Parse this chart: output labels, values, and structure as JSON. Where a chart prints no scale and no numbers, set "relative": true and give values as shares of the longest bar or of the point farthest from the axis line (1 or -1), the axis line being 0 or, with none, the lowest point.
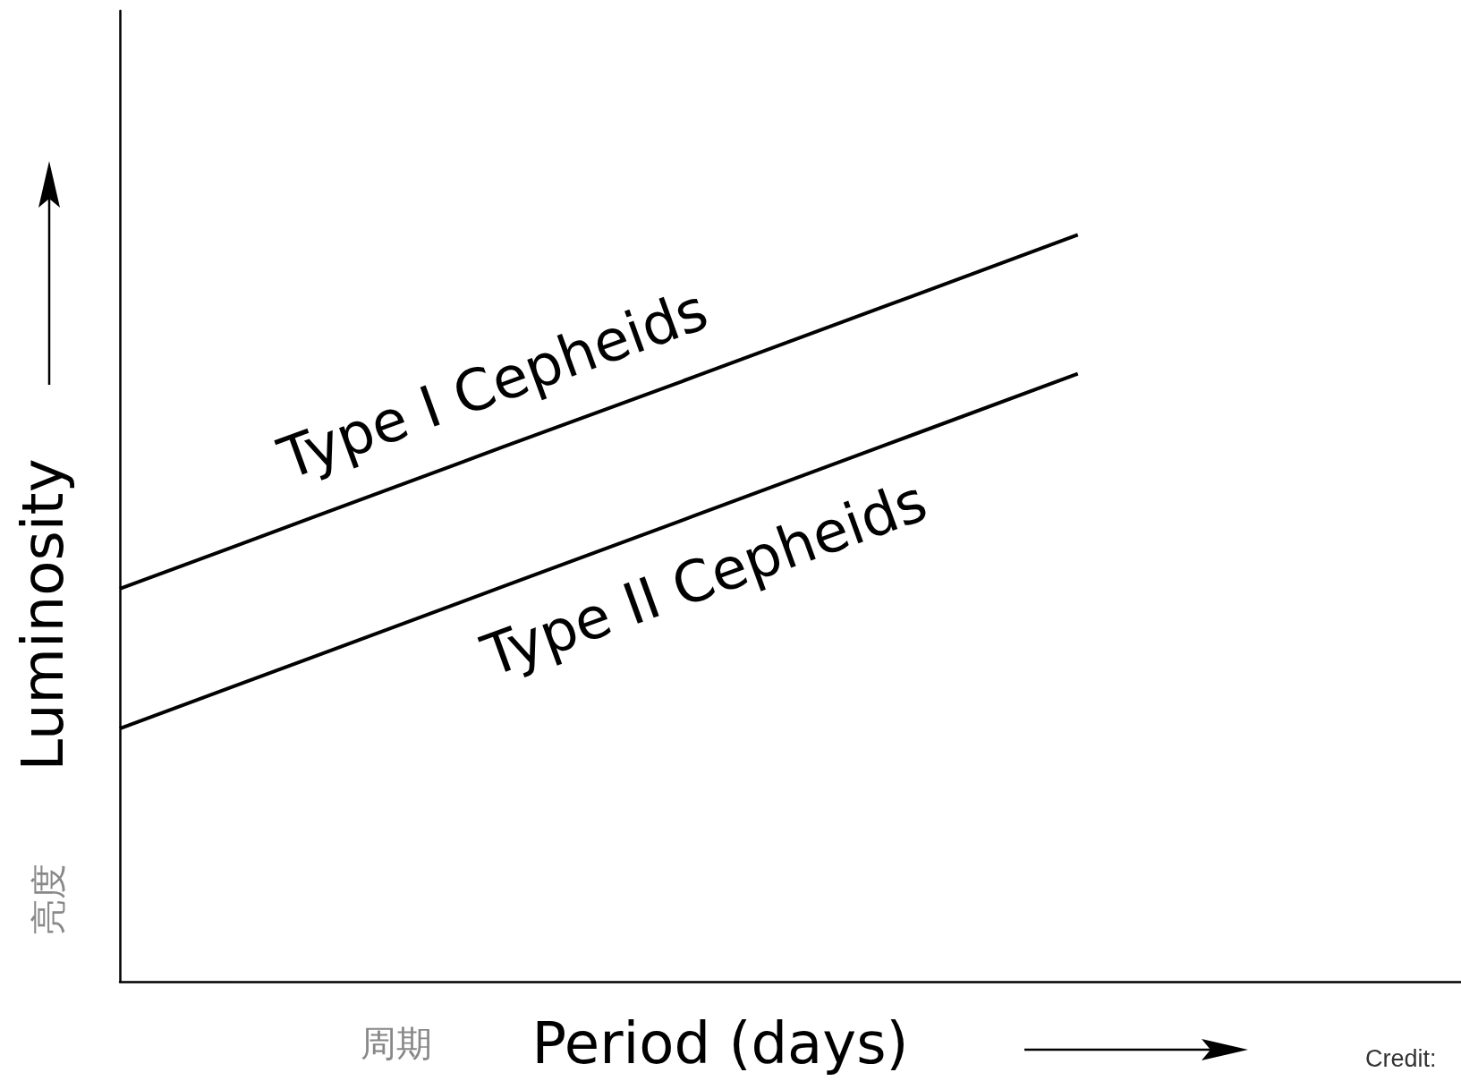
{
  "chart_data": {
    "type": "line",
    "relative": true,
    "xlabel": "Period (days)",
    "ylabel": "Luminosity",
    "annotations": [
      "亮度",
      "周期",
      "Credit:"
    ],
    "marker": "none",
    "categories": [
      null,
      null,
      null,
      null,
      null,
      null,
      null,
      null
    ],
    "series": [
      {
        "name": "Type I Cepheids",
        "color": "#000000",
        "values": [
          0.526,
          0.621,
          0.716,
          0.81,
          0.905,
          1,
          null,
          null
        ]
      },
      {
        "name": "Type II Cepheids",
        "color": "#000000",
        "values": [
          0.339,
          0.434,
          0.529,
          0.624,
          0.719,
          0.814,
          null,
          null
        ]
      }
    ]
  }
}
